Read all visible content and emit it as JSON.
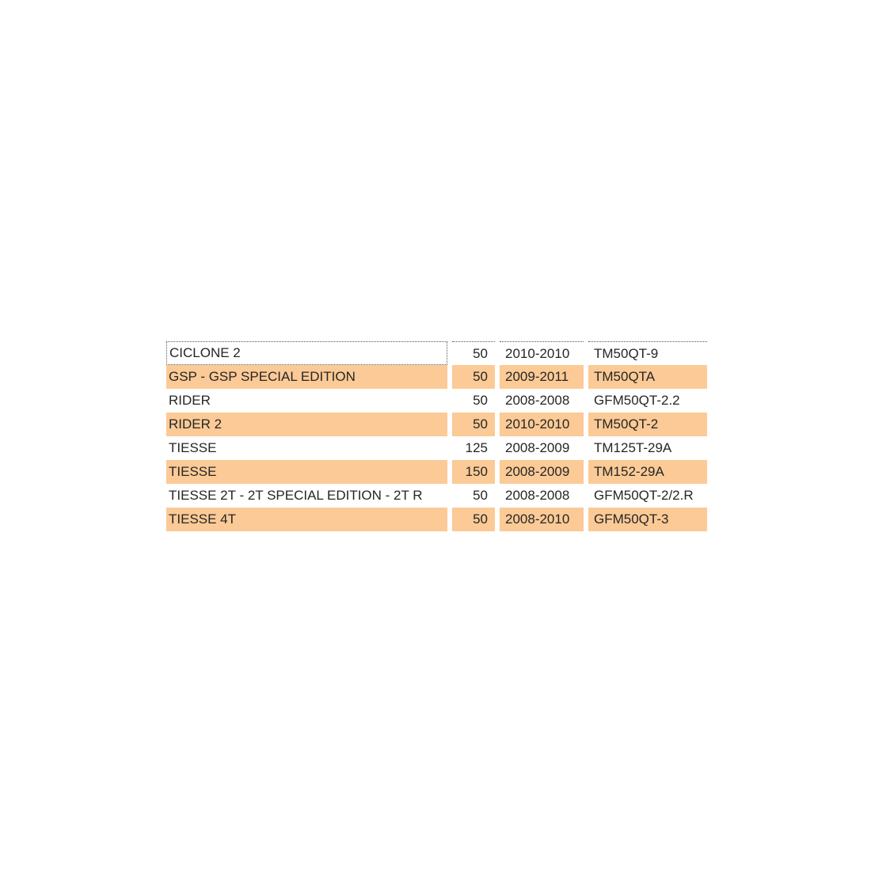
{
  "table": {
    "name": "vehicle-fitment-table",
    "columns": [
      {
        "key": "model",
        "align": "left"
      },
      {
        "key": "displacement",
        "align": "right"
      },
      {
        "key": "years",
        "align": "left"
      },
      {
        "key": "engine_code",
        "align": "left"
      }
    ],
    "rows": [
      {
        "model": "CICLONE 2",
        "displacement": "50",
        "years": "2010-2010",
        "engine_code": "TM50QT-9"
      },
      {
        "model": "GSP - GSP SPECIAL EDITION",
        "displacement": "50",
        "years": "2009-2011",
        "engine_code": "TM50QTA"
      },
      {
        "model": "RIDER",
        "displacement": "50",
        "years": "2008-2008",
        "engine_code": "GFM50QT-2.2"
      },
      {
        "model": "RIDER 2",
        "displacement": "50",
        "years": "2010-2010",
        "engine_code": "TM50QT-2"
      },
      {
        "model": "TIESSE",
        "displacement": "125",
        "years": "2008-2009",
        "engine_code": "TM125T-29A"
      },
      {
        "model": "TIESSE",
        "displacement": "150",
        "years": "2008-2009",
        "engine_code": "TM152-29A"
      },
      {
        "model": "TIESSE 2T - 2T SPECIAL EDITION - 2T R",
        "displacement": "50",
        "years": "2008-2008",
        "engine_code": "GFM50QT-2/2.R"
      },
      {
        "model": "TIESSE 4T",
        "displacement": "50",
        "years": "2008-2010",
        "engine_code": "GFM50QT-3"
      }
    ],
    "focused_cell": {
      "row": 0,
      "column": "model"
    }
  },
  "colors": {
    "row_base": "#ffffff",
    "row_alt": "#fbca96",
    "text": "#262626",
    "focus_border": "#555555",
    "page_background": "#ffffff"
  }
}
